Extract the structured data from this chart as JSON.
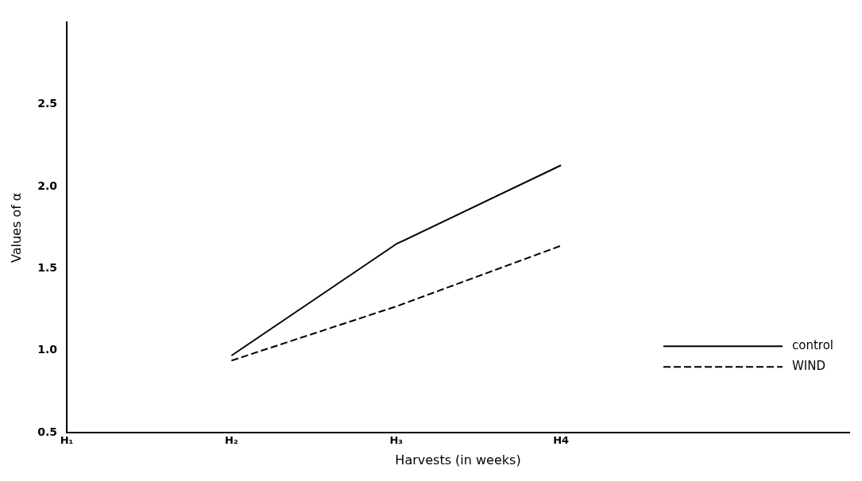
{
  "chart_data": {
    "type": "line",
    "xlabel": "Harvests (in weeks)",
    "ylabel": "Values of α",
    "categories": [
      "H₁",
      "H₂",
      "H₃",
      "H4"
    ],
    "series": [
      {
        "name": "control",
        "color": "#000000",
        "line_style": "solid",
        "values": [
          null,
          0.97,
          1.65,
          2.13
        ]
      },
      {
        "name": "WIND",
        "color": "#000000",
        "line_style": "dashed",
        "values": [
          null,
          0.94,
          1.27,
          1.64
        ]
      }
    ],
    "ylim": [
      0.5,
      3.0
    ],
    "yticks": [
      {
        "value": 0.5,
        "label": "0.5"
      },
      {
        "value": 1.0,
        "label": "1.0"
      },
      {
        "value": 1.5,
        "label": "1.5"
      },
      {
        "value": 2.0,
        "label": "2.0"
      },
      {
        "value": 2.5,
        "label": "2.5"
      }
    ],
    "grid": false,
    "legend": "bottom right",
    "marker": "none"
  }
}
